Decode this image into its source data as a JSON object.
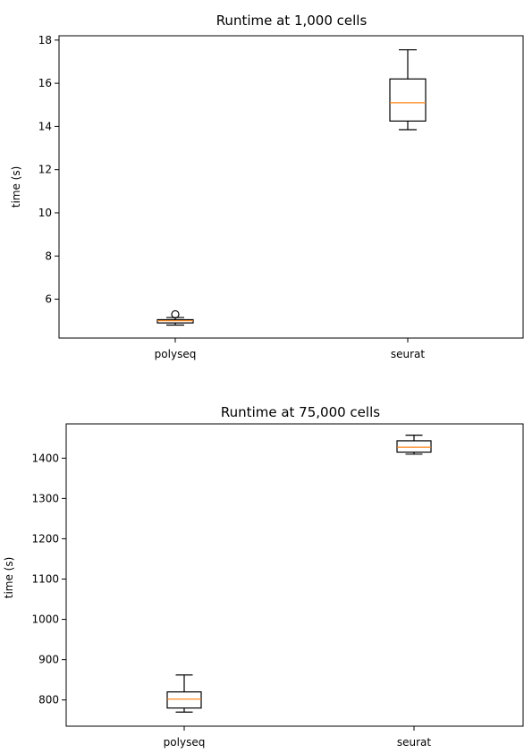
{
  "chart_data": [
    {
      "type": "box",
      "title": "Runtime at 1,000 cells",
      "xlabel": "",
      "ylabel": "time (s)",
      "categories": [
        "polyseq",
        "seurat"
      ],
      "ylim": [
        4.2,
        18.2
      ],
      "yticks": [
        "6",
        "8",
        "10",
        "12",
        "14",
        "16",
        "18"
      ],
      "boxes": [
        {
          "name": "polyseq",
          "whisker_low": 4.8,
          "q1": 4.9,
          "median": 5.0,
          "q3": 5.05,
          "whisker_high": 5.15,
          "outliers": [
            5.3
          ]
        },
        {
          "name": "seurat",
          "whisker_low": 13.85,
          "q1": 14.25,
          "median": 15.1,
          "q3": 16.2,
          "whisker_high": 17.55,
          "outliers": []
        }
      ],
      "grid": false,
      "colors": {
        "box": "#000000",
        "median": "#ff7f0e",
        "background": "#ffffff"
      }
    },
    {
      "type": "box",
      "title": "Runtime at 75,000 cells",
      "xlabel": "",
      "ylabel": "time (s)",
      "categories": [
        "polyseq",
        "seurat"
      ],
      "ylim": [
        735,
        1485
      ],
      "yticks": [
        "800",
        "900",
        "1000",
        "1100",
        "1200",
        "1300",
        "1400"
      ],
      "boxes": [
        {
          "name": "polyseq",
          "whisker_low": 770,
          "q1": 780,
          "median": 802,
          "q3": 820,
          "whisker_high": 862,
          "outliers": []
        },
        {
          "name": "seurat",
          "whisker_low": 1410,
          "q1": 1415,
          "median": 1427,
          "q3": 1443,
          "whisker_high": 1457,
          "outliers": []
        }
      ],
      "grid": false,
      "colors": {
        "box": "#000000",
        "median": "#ff7f0e",
        "background": "#ffffff"
      }
    }
  ]
}
